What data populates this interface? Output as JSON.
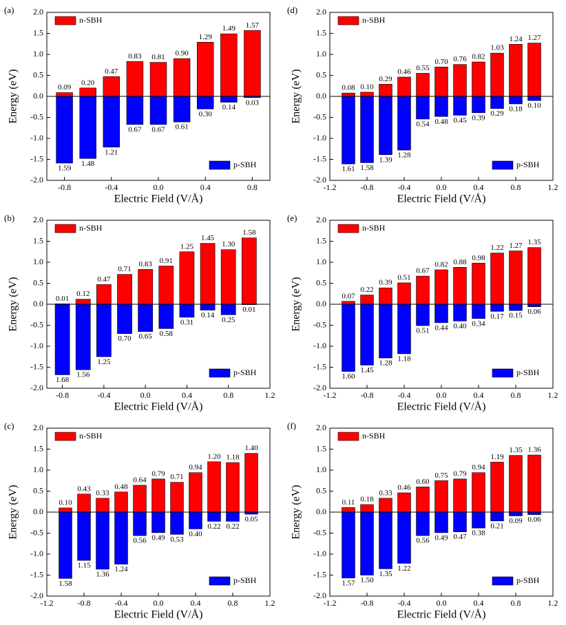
{
  "chart_data": [
    {
      "type": "bar",
      "panel": "(a)",
      "x_label": "Electric Field (V/Å)",
      "y_label": "Energy (eV)",
      "x": [
        -0.8,
        -0.6,
        -0.4,
        -0.2,
        0,
        0.2,
        0.4,
        0.6,
        0.8
      ],
      "series": [
        {
          "name": "n-SBH",
          "color": "#ff0000",
          "legend": "upper left",
          "values": [
            0.09,
            0.2,
            0.47,
            0.83,
            0.81,
            0.9,
            1.29,
            1.49,
            1.57
          ],
          "value_labels": [
            "0.09",
            "0.20",
            "0.47",
            "0.83",
            "0.81",
            "0.90",
            "1.29",
            "1.49",
            "1.57"
          ]
        },
        {
          "name": "p-SBH",
          "color": "#0000ff",
          "legend": "lower right",
          "values": [
            -1.59,
            -1.48,
            -1.21,
            -0.67,
            -0.67,
            -0.61,
            -0.3,
            -0.14,
            -0.03
          ],
          "value_labels": [
            "1.59",
            "1.48",
            "1.21",
            "0.67",
            "0.67",
            "0.61",
            "0.30",
            "0.14",
            "0.03"
          ]
        }
      ],
      "xlim": [
        -0.95,
        0.95
      ],
      "xticks": [
        -0.8,
        -0.4,
        {
          "value": 0,
          "label": "0.0"
        },
        0.4,
        0.8
      ],
      "ylim": [
        -2,
        2
      ],
      "yticks": [
        {
          "value": -2,
          "label": "-2.0"
        },
        -1.5,
        {
          "value": -1,
          "label": "-1.0"
        },
        -0.5,
        {
          "value": 0,
          "label": "0.0"
        },
        0.5,
        {
          "value": 1,
          "label": "1.0"
        },
        1.5,
        {
          "value": 2,
          "label": "2.0"
        }
      ]
    },
    {
      "type": "bar",
      "panel": "(d)",
      "x_label": "Electric Field (V/Å)",
      "y_label": "Energy (eV)",
      "x": [
        -1,
        -0.8,
        -0.6,
        -0.4,
        -0.2,
        0,
        0.2,
        0.4,
        0.6,
        0.8,
        1
      ],
      "series": [
        {
          "name": "n-SBH",
          "color": "#ff0000",
          "legend": "upper left",
          "values": [
            0.08,
            0.1,
            0.29,
            0.46,
            0.55,
            0.7,
            0.76,
            0.82,
            1.03,
            1.24,
            1.27
          ],
          "value_labels": [
            "0.08",
            "0.10",
            "0.29",
            "0.46",
            "0.55",
            "0.70",
            "0.76",
            "0.82",
            "1.03",
            "1.24",
            "1.27"
          ]
        },
        {
          "name": "p-SBH",
          "color": "#0000ff",
          "legend": "lower right",
          "values": [
            -1.61,
            -1.58,
            -1.39,
            -1.28,
            -0.54,
            -0.48,
            -0.45,
            -0.39,
            -0.29,
            -0.18,
            -0.1
          ],
          "value_labels": [
            "1.61",
            "1.58",
            "1.39",
            "1.28",
            "0.54",
            "0.48",
            "0.45",
            "0.39",
            "0.29",
            "0.18",
            "0.10"
          ]
        }
      ],
      "xlim": [
        -1.2,
        1.2
      ],
      "xticks": [
        -1.2,
        -0.8,
        -0.4,
        {
          "value": 0,
          "label": "0.0"
        },
        0.4,
        0.8,
        1.2
      ],
      "ylim": [
        -2,
        2
      ],
      "yticks": [
        {
          "value": -2,
          "label": "-2.0"
        },
        -1.5,
        {
          "value": -1,
          "label": "-1.0"
        },
        -0.5,
        {
          "value": 0,
          "label": "0.0"
        },
        0.5,
        {
          "value": 1,
          "label": "1.0"
        },
        1.5,
        {
          "value": 2,
          "label": "2.0"
        }
      ]
    },
    {
      "type": "bar",
      "panel": "(b)",
      "x_label": "Electric Field (V/Å)",
      "y_label": "Energy (eV)",
      "x": [
        -0.8,
        -0.6,
        -0.4,
        -0.2,
        0,
        0.2,
        0.4,
        0.6,
        0.8,
        1
      ],
      "series": [
        {
          "name": "n-SBH",
          "color": "#ff0000",
          "legend": "upper left",
          "values": [
            0.01,
            0.12,
            0.47,
            0.71,
            0.83,
            0.91,
            1.25,
            1.45,
            1.3,
            1.58
          ],
          "value_labels": [
            "0.01",
            "0.12",
            "0.47",
            "0.71",
            "0.83",
            "0.91",
            "1.25",
            "1.45",
            "1.30",
            "1.58"
          ]
        },
        {
          "name": "p-SBH",
          "color": "#0000ff",
          "legend": "lower right",
          "values": [
            -1.68,
            -1.56,
            -1.25,
            -0.7,
            -0.65,
            -0.58,
            -0.31,
            -0.14,
            -0.25,
            -0.01
          ],
          "value_labels": [
            "1.68",
            "1.56",
            "1.25",
            "0.70",
            "0.65",
            "0.58",
            "0.31",
            "0.14",
            "0.25",
            "0.01"
          ]
        }
      ],
      "xlim": [
        -0.95,
        1.2
      ],
      "xticks": [
        -0.8,
        -0.4,
        {
          "value": 0,
          "label": "0.0"
        },
        0.4,
        0.8,
        1.2
      ],
      "ylim": [
        -2,
        2
      ],
      "yticks": [
        {
          "value": -2,
          "label": "-2.0"
        },
        -1.5,
        {
          "value": -1,
          "label": "-1.0"
        },
        -0.5,
        {
          "value": 0,
          "label": "0.0"
        },
        0.5,
        {
          "value": 1,
          "label": "1.0"
        },
        1.5,
        {
          "value": 2,
          "label": "2.0"
        }
      ]
    },
    {
      "type": "bar",
      "panel": "(e)",
      "x_label": "Electric Field (V/Å)",
      "y_label": "Energy (eV)",
      "x": [
        -1,
        -0.8,
        -0.6,
        -0.4,
        -0.2,
        0,
        0.2,
        0.4,
        0.6,
        0.8,
        1
      ],
      "series": [
        {
          "name": "n-SBH",
          "color": "#ff0000",
          "legend": "upper left",
          "values": [
            0.07,
            0.22,
            0.39,
            0.51,
            0.67,
            0.82,
            0.88,
            0.98,
            1.22,
            1.27,
            1.35
          ],
          "value_labels": [
            "0.07",
            "0.22",
            "0.39",
            "0.51",
            "0.67",
            "0.82",
            "0.88",
            "0.98",
            "1.22",
            "1.27",
            "1.35"
          ]
        },
        {
          "name": "p-SBH",
          "color": "#0000ff",
          "legend": "lower right",
          "values": [
            -1.6,
            -1.45,
            -1.28,
            -1.18,
            -0.51,
            -0.44,
            -0.4,
            -0.34,
            -0.17,
            -0.15,
            -0.06
          ],
          "value_labels": [
            "1.60",
            "1.45",
            "1.28",
            "1.18",
            "0.51",
            "0.44",
            "0.40",
            "0.34",
            "0.17",
            "0.15",
            "0.06"
          ]
        }
      ],
      "xlim": [
        -1.2,
        1.2
      ],
      "xticks": [
        -1.2,
        -0.8,
        -0.4,
        {
          "value": 0,
          "label": "0.0"
        },
        0.4,
        0.8,
        1.2
      ],
      "ylim": [
        -2,
        2
      ],
      "yticks": [
        {
          "value": -2,
          "label": "-2.0"
        },
        -1.5,
        {
          "value": -1,
          "label": "-1.0"
        },
        -0.5,
        {
          "value": 0,
          "label": "0.0"
        },
        0.5,
        {
          "value": 1,
          "label": "1.0"
        },
        1.5,
        {
          "value": 2,
          "label": "2.0"
        }
      ]
    },
    {
      "type": "bar",
      "panel": "(c)",
      "x_label": "Electric Field (V/Å)",
      "y_label": "Energy (eV)",
      "x": [
        -1,
        -0.8,
        -0.6,
        -0.4,
        -0.2,
        0,
        0.2,
        0.4,
        0.6,
        0.8,
        1
      ],
      "series": [
        {
          "name": "n-SBH",
          "color": "#ff0000",
          "legend": "upper left",
          "values": [
            0.1,
            0.43,
            0.33,
            0.48,
            0.64,
            0.79,
            0.71,
            0.94,
            1.2,
            1.18,
            1.4
          ],
          "value_labels": [
            "0.10",
            "0.43",
            "0.33",
            "0.48",
            "0.64",
            "0.79",
            "0.71",
            "0.94",
            "1.20",
            "1.18",
            "1.40"
          ]
        },
        {
          "name": "p-SBH",
          "color": "#0000ff",
          "legend": "lower right",
          "values": [
            -1.58,
            -1.15,
            -1.36,
            -1.24,
            -0.56,
            -0.49,
            -0.53,
            -0.4,
            -0.22,
            -0.22,
            -0.05
          ],
          "value_labels": [
            "1.58",
            "1.15",
            "1.36",
            "1.24",
            "0.56",
            "0.49",
            "0.53",
            "0.40",
            "0.22",
            "0.22",
            "0.05"
          ]
        }
      ],
      "xlim": [
        -1.2,
        1.2
      ],
      "xticks": [
        -1.2,
        -0.8,
        -0.4,
        {
          "value": 0,
          "label": "0.0"
        },
        0.4,
        0.8,
        1.2
      ],
      "ylim": [
        -2,
        2
      ],
      "yticks": [
        {
          "value": -2,
          "label": "-2.0"
        },
        -1.5,
        {
          "value": -1,
          "label": "-1.0"
        },
        -0.5,
        {
          "value": 0,
          "label": "0.0"
        },
        0.5,
        {
          "value": 1,
          "label": "1.0"
        },
        1.5,
        {
          "value": 2,
          "label": "2.0"
        }
      ]
    },
    {
      "type": "bar",
      "panel": "(f)",
      "x_label": "Electric Field (V/Å)",
      "y_label": "Energy (eV)",
      "x": [
        -1,
        -0.8,
        -0.6,
        -0.4,
        -0.2,
        0,
        0.2,
        0.4,
        0.6,
        0.8,
        1
      ],
      "series": [
        {
          "name": "n-SBH",
          "color": "#ff0000",
          "legend": "upper left",
          "values": [
            0.11,
            0.18,
            0.33,
            0.46,
            0.6,
            0.75,
            0.79,
            0.94,
            1.19,
            1.35,
            1.36
          ],
          "value_labels": [
            "0.11",
            "0.18",
            "0.33",
            "0.46",
            "0.60",
            "0.75",
            "0.79",
            "0.94",
            "1.19",
            "1.35",
            "1.36"
          ]
        },
        {
          "name": "p-SBH",
          "color": "#0000ff",
          "legend": "lower right",
          "values": [
            -1.57,
            -1.5,
            -1.35,
            -1.22,
            -0.56,
            -0.49,
            -0.47,
            -0.38,
            -0.21,
            -0.09,
            -0.06
          ],
          "value_labels": [
            "1.57",
            "1.50",
            "1.35",
            "1.22",
            "0.56",
            "0.49",
            "0.47",
            "0.38",
            "0.21",
            "0.09",
            "0.06"
          ]
        }
      ],
      "xlim": [
        -1.2,
        1.2
      ],
      "xticks": [
        -1.2,
        -0.8,
        -0.4,
        {
          "value": 0,
          "label": "0.0"
        },
        0.4,
        0.8,
        1.2
      ],
      "ylim": [
        -2,
        2
      ],
      "yticks": [
        {
          "value": -2,
          "label": "-2.0"
        },
        -1.5,
        {
          "value": -1,
          "label": "-1.0"
        },
        -0.5,
        {
          "value": 0,
          "label": "0.0"
        },
        0.5,
        {
          "value": 1,
          "label": "1.0"
        },
        1.5,
        {
          "value": 2,
          "label": "2.0"
        }
      ]
    }
  ]
}
